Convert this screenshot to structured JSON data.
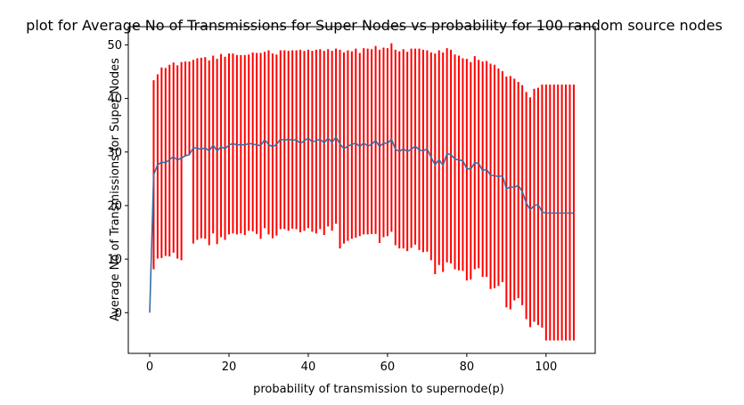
{
  "chart_data": {
    "type": "line",
    "title": "plot for Average No of Transmissions for Super Nodes vs probability for 100 random source nodes",
    "xlabel": "probability of transmission to supernode(p)",
    "ylabel": "Average No of Transmissions for Super Nodes",
    "xlim": [
      -5.4,
      112.4
    ],
    "ylim": [
      -7.6,
      53.4
    ],
    "xticks": [
      0,
      20,
      40,
      60,
      80,
      100
    ],
    "yticks": [
      0,
      10,
      20,
      30,
      40,
      50
    ],
    "grid": false,
    "colors": {
      "line": "#3a6ea5",
      "errorbar": "#ff0000",
      "frame": "#000000"
    },
    "series": [
      {
        "x": [
          0,
          1,
          2,
          3,
          4,
          5,
          6,
          7,
          8,
          9,
          10,
          11,
          12,
          13,
          14,
          15,
          16,
          17,
          18,
          19,
          20,
          21,
          22,
          23,
          24,
          25,
          26,
          27,
          28,
          29,
          30,
          31,
          32,
          33,
          34,
          35,
          36,
          37,
          38,
          39,
          40,
          41,
          42,
          43,
          44,
          45,
          46,
          47,
          48,
          49,
          50,
          51,
          52,
          53,
          54,
          55,
          56,
          57,
          58,
          59,
          60,
          61,
          62,
          63,
          64,
          65,
          66,
          67,
          68,
          69,
          70,
          71,
          72,
          73,
          74,
          75,
          76,
          77,
          78,
          79,
          80,
          81,
          82,
          83,
          84,
          85,
          86,
          87,
          88,
          89,
          90,
          91,
          92,
          93,
          94,
          95,
          96,
          97,
          98,
          99,
          100,
          101,
          102,
          103,
          104,
          105,
          106,
          107
        ],
        "y": [
          0,
          25.8,
          27.6,
          28.1,
          28.0,
          28.6,
          29.1,
          28.5,
          28.9,
          29.3,
          29.5,
          30.8,
          30.7,
          30.5,
          30.8,
          30.2,
          31.3,
          30.2,
          31.0,
          30.6,
          31.3,
          31.6,
          31.3,
          31.4,
          31.3,
          31.6,
          31.5,
          31.3,
          31.2,
          32.3,
          31.4,
          31.0,
          31.4,
          32.4,
          32.2,
          32.4,
          32.2,
          32.3,
          31.6,
          32.1,
          32.6,
          31.9,
          32.1,
          32.4,
          31.7,
          32.6,
          31.8,
          32.8,
          31.5,
          30.6,
          31.1,
          31.4,
          31.7,
          31.0,
          31.7,
          31.1,
          31.4,
          32.2,
          31.0,
          31.7,
          31.6,
          32.4,
          30.5,
          30.1,
          30.6,
          30.1,
          30.5,
          31.1,
          30.4,
          30.2,
          30.6,
          29.0,
          27.6,
          28.6,
          27.5,
          29.7,
          29.5,
          28.7,
          28.5,
          28.4,
          26.9,
          26.8,
          28.0,
          27.9,
          26.5,
          26.8,
          25.6,
          25.6,
          25.4,
          25.6,
          23.1,
          23.5,
          23.4,
          23.8,
          22.6,
          20.5,
          19.2,
          20.0,
          20.2,
          18.8,
          18.6,
          18.6,
          18.6,
          18.6,
          18.6,
          18.6,
          18.6,
          18.6
        ],
        "upper": [
          null,
          43.4,
          44.5,
          45.8,
          45.7,
          46.3,
          46.7,
          46.2,
          46.8,
          46.9,
          46.9,
          47.2,
          47.5,
          47.6,
          47.7,
          47.1,
          48.0,
          47.4,
          48.3,
          47.8,
          48.4,
          48.4,
          48.1,
          48.1,
          48.1,
          48.2,
          48.6,
          48.5,
          48.5,
          48.7,
          49.0,
          48.4,
          48.2,
          49.0,
          49.0,
          48.9,
          49.0,
          49.0,
          49.1,
          48.9,
          49.1,
          48.9,
          49.1,
          49.2,
          48.9,
          49.2,
          48.9,
          49.3,
          49.1,
          48.6,
          49.0,
          48.8,
          49.3,
          48.5,
          49.4,
          49.3,
          49.2,
          49.8,
          49.1,
          49.5,
          49.4,
          50.3,
          49.1,
          48.8,
          49.2,
          48.7,
          49.3,
          49.3,
          49.3,
          49.1,
          49.0,
          48.6,
          48.4,
          49.0,
          48.6,
          49.4,
          49.1,
          48.2,
          48.0,
          47.5,
          47.4,
          46.8,
          47.9,
          47.2,
          46.9,
          47.0,
          46.5,
          46.3,
          45.6,
          45.1,
          44.1,
          44.2,
          43.7,
          43.1,
          42.5,
          41.2,
          40.2,
          41.8,
          42.0,
          42.6,
          42.6,
          42.6,
          42.6,
          42.6,
          42.6,
          42.6,
          42.6,
          42.6
        ],
        "lower": [
          null,
          8.1,
          10.1,
          10.2,
          10.6,
          10.5,
          11.2,
          10.1,
          9.8,
          null,
          null,
          12.9,
          13.6,
          13.9,
          13.8,
          12.6,
          14.8,
          12.8,
          14.1,
          13.6,
          14.6,
          14.8,
          14.6,
          14.8,
          14.5,
          15.3,
          15.2,
          14.7,
          13.8,
          15.8,
          14.6,
          13.9,
          14.4,
          15.6,
          15.6,
          15.3,
          15.7,
          15.6,
          15.0,
          15.3,
          15.8,
          15.1,
          14.8,
          15.6,
          14.5,
          16.1,
          15.3,
          16.6,
          12.0,
          12.9,
          13.4,
          13.8,
          14.0,
          14.3,
          14.6,
          14.6,
          14.7,
          14.7,
          13.0,
          14.1,
          14.3,
          15.1,
          12.6,
          12.0,
          12.0,
          11.5,
          12.1,
          12.7,
          11.7,
          11.3,
          11.4,
          9.8,
          7.2,
          8.9,
          7.6,
          9.4,
          9.2,
          8.1,
          7.9,
          7.8,
          6.0,
          6.2,
          8.1,
          8.3,
          6.7,
          6.7,
          4.4,
          4.6,
          5.0,
          5.7,
          1.0,
          0.6,
          2.3,
          2.7,
          1.4,
          -1.2,
          -2.7,
          -1.7,
          -2.3,
          -2.8,
          -5.2,
          -5.2,
          -5.2,
          -5.2,
          -5.2,
          -5.2,
          -5.2,
          -5.2
        ]
      }
    ]
  }
}
